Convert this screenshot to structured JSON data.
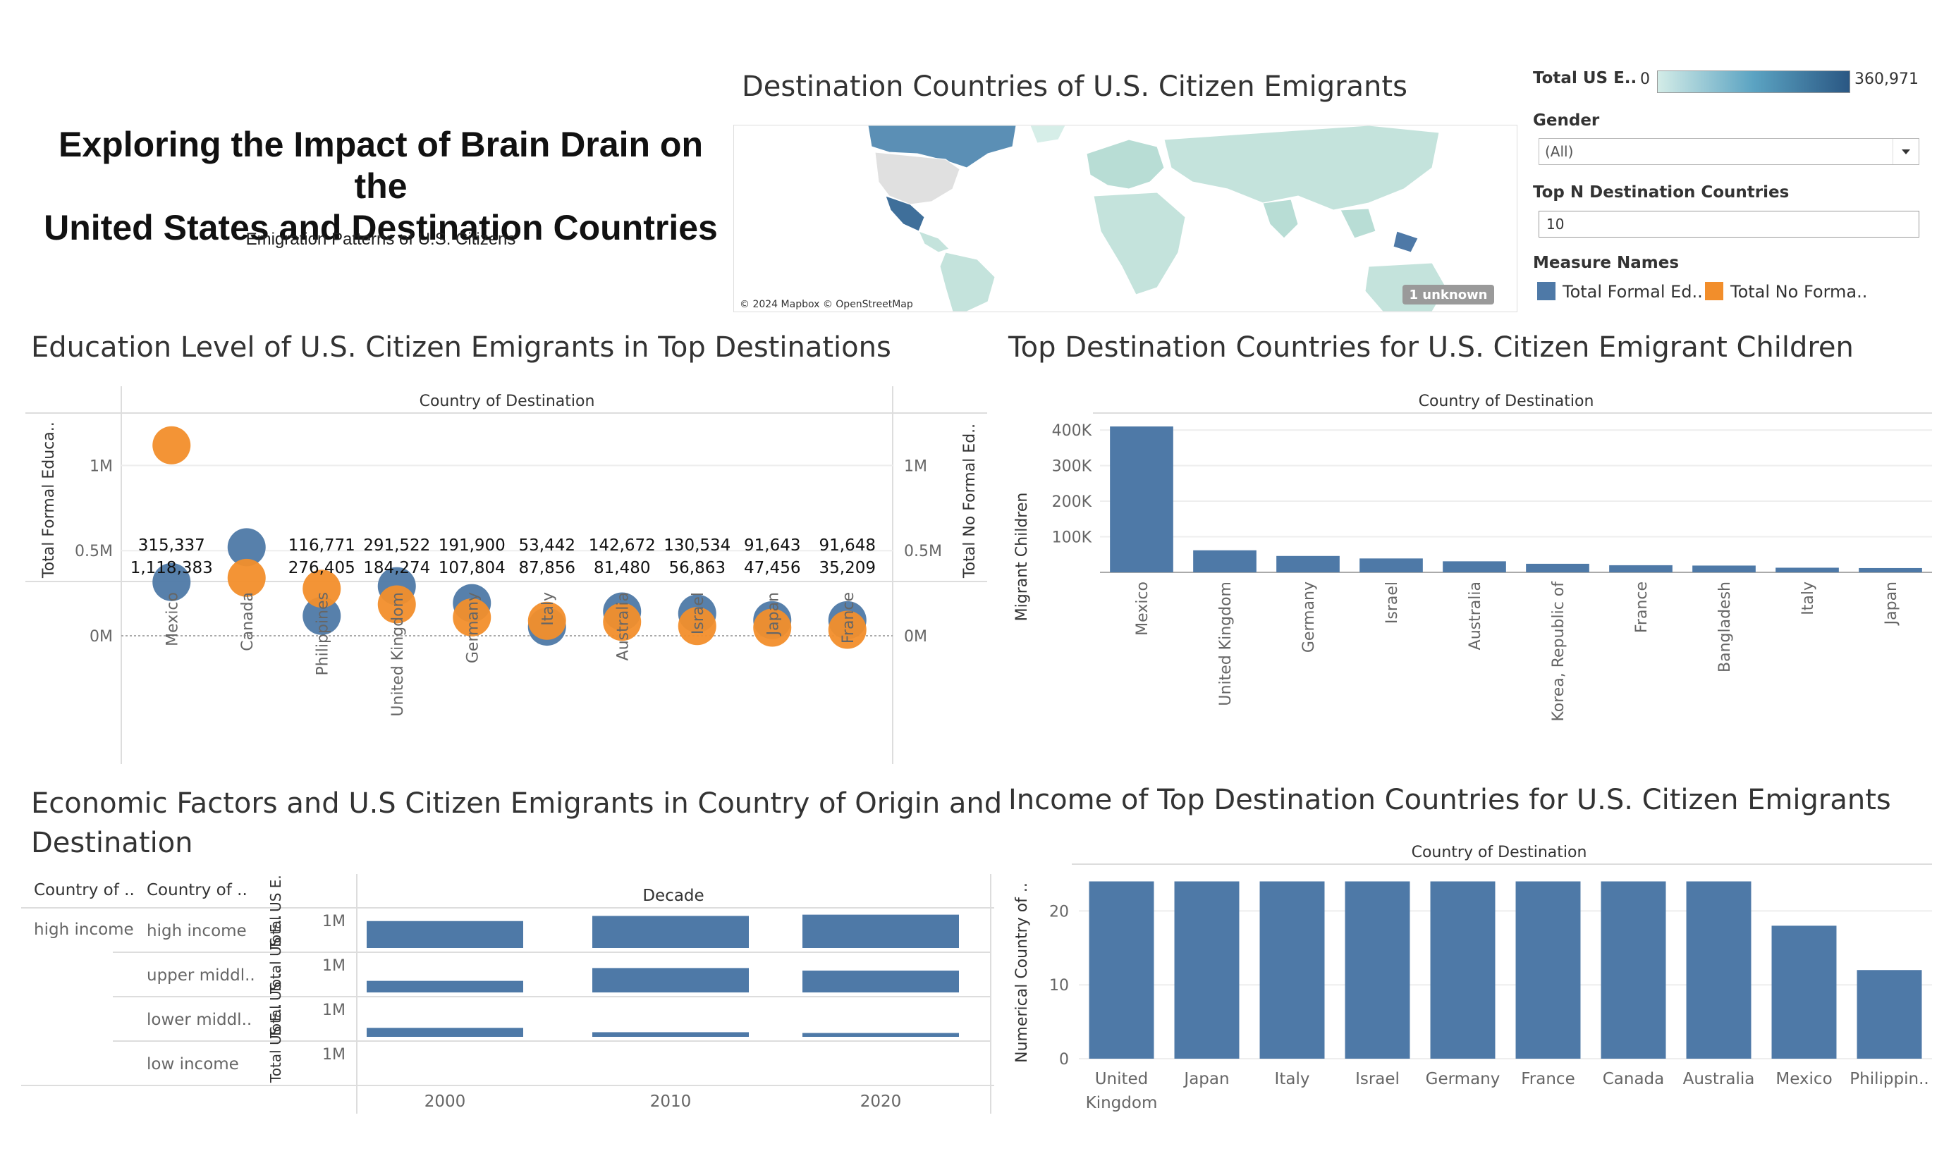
{
  "dashboard": {
    "title_line1": "Exploring the Impact of Brain Drain on the",
    "title_line2": "United States and Destination Countries",
    "subtitle": "Emigration Patterns of U.S. Citizens"
  },
  "map_sheet": {
    "title": "Destination Countries of U.S. Citizen Emigrants",
    "attribution": "© 2024 Mapbox © OpenStreetMap",
    "unknown_badge": "1 unknown"
  },
  "legend": {
    "color_label": "Total US E..",
    "color_min": "0",
    "color_max": "360,971",
    "color_low": "#d3ece7",
    "color_high": "#2a5783",
    "gender_label": "Gender",
    "gender_value": "(All)",
    "topn_label": "Top N Destination Countries",
    "topn_value": "10",
    "measure_label": "Measure Names",
    "measure_items": [
      {
        "label": "Total Formal Ed..",
        "color": "#4e79a7"
      },
      {
        "label": "Total No Forma..",
        "color": "#f28e2b"
      }
    ]
  },
  "education_sheet": {
    "title": "Education Level of U.S. Citizen Emigrants in Top Destinations",
    "header": "Country of Destination",
    "left_axis_title": "Total Formal Educa..",
    "right_axis_title": "Total No Formal Ed..",
    "y_ticks": [
      "1M",
      "0.5M",
      "0M"
    ]
  },
  "children_sheet": {
    "title": "Top Destination Countries for U.S. Citizen Emigrant Children",
    "header": "Country of Destination",
    "axis_title": "Migrant Children",
    "y_ticks": [
      "400K",
      "300K",
      "200K",
      "100K"
    ]
  },
  "economic_sheet": {
    "title_line1": "Economic Factors and U.S Citizen Emigrants in Country of Origin and",
    "title_line2": "Destination",
    "col1_header": "Country of ..",
    "col2_header": "Country of ..",
    "decade_header": "Decade",
    "origin_value": "high income",
    "rows": [
      {
        "label": "high income",
        "axis": "Total US E..",
        "tick": "1M"
      },
      {
        "label": "upper middl..",
        "axis": "Total US E..",
        "tick": "1M"
      },
      {
        "label": "lower middl..",
        "axis": "Total US ..",
        "tick": "1M"
      },
      {
        "label": "low income",
        "axis": "Total US E..",
        "tick": "1M"
      }
    ],
    "decades": [
      "2000",
      "2010",
      "2020"
    ]
  },
  "income_sheet": {
    "title": "Income of Top Destination Countries for U.S. Citizen Emigrants",
    "header": "Country of Destination",
    "axis_title": "Numerical Country of ..",
    "y_ticks": [
      "20",
      "10",
      "0"
    ]
  },
  "chart_data": [
    {
      "id": "education",
      "type": "scatter",
      "categories": [
        "Mexico",
        "Canada",
        "Philippines",
        "United Kingdom",
        "Germany",
        "Italy",
        "Australia",
        "Israel",
        "Japan",
        "France"
      ],
      "series": [
        {
          "name": "Total Formal Ed..",
          "color": "#4e79a7",
          "values": [
            315337,
            520000,
            116771,
            291522,
            191900,
            53442,
            142672,
            130534,
            91643,
            91648
          ]
        },
        {
          "name": "Total No Forma..",
          "color": "#f28e2b",
          "values": [
            1118383,
            340000,
            276405,
            184274,
            107804,
            87856,
            81480,
            56863,
            47456,
            35209
          ]
        }
      ],
      "label_top": [
        "315,337",
        "",
        "116,771",
        "291,522",
        "191,900",
        "53,442",
        "142,672",
        "130,534",
        "91,643",
        "91,648"
      ],
      "label_bottom": [
        "1,118,383",
        "",
        "276,405",
        "184,274",
        "107,804",
        "87,856",
        "81,480",
        "56,863",
        "47,456",
        "35,209"
      ],
      "ylim": [
        0,
        1250000
      ]
    },
    {
      "id": "children",
      "type": "bar",
      "categories": [
        "Mexico",
        "United Kingdom",
        "Germany",
        "Israel",
        "Australia",
        "Korea, Republic of",
        "France",
        "Bangladesh",
        "Italy",
        "Japan"
      ],
      "values": [
        410000,
        62000,
        46000,
        39000,
        31000,
        24000,
        20000,
        19000,
        13000,
        12000
      ],
      "ylim": [
        0,
        420000
      ],
      "color": "#4e79a7"
    },
    {
      "id": "economic",
      "type": "bar",
      "categories": [
        "2000",
        "2010",
        "2020"
      ],
      "series": [
        {
          "name": "high income",
          "values": [
            1.05,
            1.25,
            1.3
          ]
        },
        {
          "name": "upper middl..",
          "values": [
            0.45,
            0.95,
            0.85
          ]
        },
        {
          "name": "lower middl..",
          "values": [
            0.35,
            0.18,
            0.15
          ]
        },
        {
          "name": "low income",
          "values": [
            0,
            0,
            0
          ]
        }
      ],
      "color": "#4e79a7"
    },
    {
      "id": "income",
      "type": "bar",
      "categories": [
        "United Kingdom",
        "Japan",
        "Italy",
        "Israel",
        "Germany",
        "France",
        "Canada",
        "Australia",
        "Mexico",
        "Philippin.."
      ],
      "values": [
        24,
        24,
        24,
        24,
        24,
        24,
        24,
        24,
        18,
        12
      ],
      "ylim": [
        0,
        25
      ],
      "color": "#4e79a7"
    }
  ]
}
